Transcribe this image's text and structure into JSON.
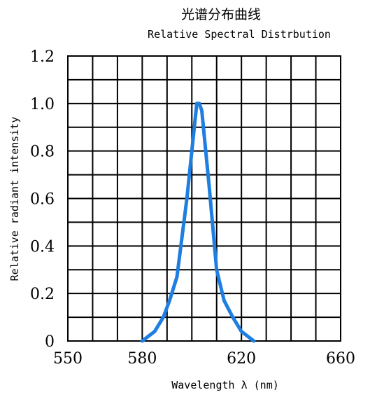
{
  "chart_data": {
    "type": "line",
    "title": "光谱分布曲线",
    "subtitle": "Relative Spectral Distrbution",
    "xlabel": "Wavelength λ (nm)",
    "ylabel": "Relative radiant intensity",
    "xlim": [
      550,
      660
    ],
    "ylim": [
      0,
      1.2
    ],
    "x_ticks": [
      550,
      580,
      620,
      660
    ],
    "x_tick_labels": [
      "550",
      "580",
      "620",
      "660"
    ],
    "y_ticks": [
      0,
      0.2,
      0.4,
      0.6,
      0.8,
      1.0,
      1.2
    ],
    "y_tick_labels": [
      "0",
      "0.2",
      "0.4",
      "0.6",
      "0.8",
      "1.0",
      "1.2"
    ],
    "grid": true,
    "grid_x_divisions": 11,
    "grid_y_divisions": 12,
    "series": [
      {
        "color": "#1f7fe0",
        "x": [
          580,
          585,
          588.5,
          591,
          594,
          598,
          601,
          602,
          603,
          604,
          607,
          610,
          613,
          616.5,
          620,
          625
        ],
        "y": [
          0,
          0.04,
          0.1,
          0.17,
          0.27,
          0.6,
          0.9,
          1.0,
          1.0,
          0.97,
          0.65,
          0.3,
          0.17,
          0.1,
          0.04,
          0
        ]
      }
    ]
  }
}
